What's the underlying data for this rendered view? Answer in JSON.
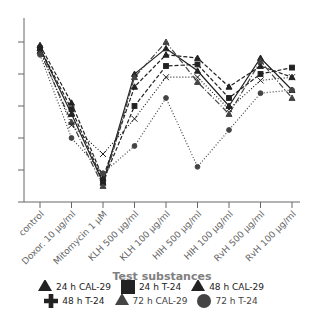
{
  "chart_data": {
    "type": "line",
    "xlabel": "Test substances",
    "categories": [
      "control",
      "Doxor. 10 μg/ml",
      "Mitomycin 1 μM",
      "KLH 500 μg/ml",
      "KLH 100 μg/ml",
      "HIH 500 μg/ml",
      "HIH 100 μg/ml",
      "RvH 500 μg/ml",
      "RvH 100 μg/ml"
    ],
    "series": [
      {
        "name": "24 h CAL-29",
        "color": "#222222",
        "marker": "triangle",
        "line_style": "dashed",
        "values": [
          98,
          62,
          15,
          72,
          92,
          90,
          72,
          85,
          78
        ]
      },
      {
        "name": "48 h CAL-29",
        "color": "#222222",
        "marker": "triangle",
        "line_style": "solid",
        "values": [
          96,
          55,
          12,
          80,
          96,
          82,
          60,
          90,
          70
        ]
      },
      {
        "name": "72 h CAL-29",
        "color": "#444444",
        "marker": "triangle",
        "line_style": "dashdot",
        "values": [
          94,
          50,
          10,
          78,
          100,
          75,
          55,
          88,
          65
        ]
      },
      {
        "name": "24 h T-24",
        "color": "#222222",
        "marker": "square",
        "line_style": "dashed",
        "values": [
          96,
          58,
          13,
          60,
          85,
          86,
          65,
          80,
          84
        ]
      },
      {
        "name": "48 h T-24",
        "color": "#222222",
        "marker": "x",
        "line_style": "dotted",
        "values": [
          95,
          48,
          30,
          52,
          78,
          78,
          58,
          76,
          78
        ]
      },
      {
        "name": "72 h T-24",
        "color": "#444444",
        "marker": "circle",
        "line_style": "dotted",
        "values": [
          92,
          40,
          18,
          35,
          65,
          22,
          45,
          68,
          70
        ]
      }
    ],
    "ylim": [
      0,
      115
    ],
    "yticks": [
      0,
      20,
      40,
      60,
      80,
      100
    ],
    "tick_labels": "x",
    "grid": false,
    "legend": "bottom"
  }
}
